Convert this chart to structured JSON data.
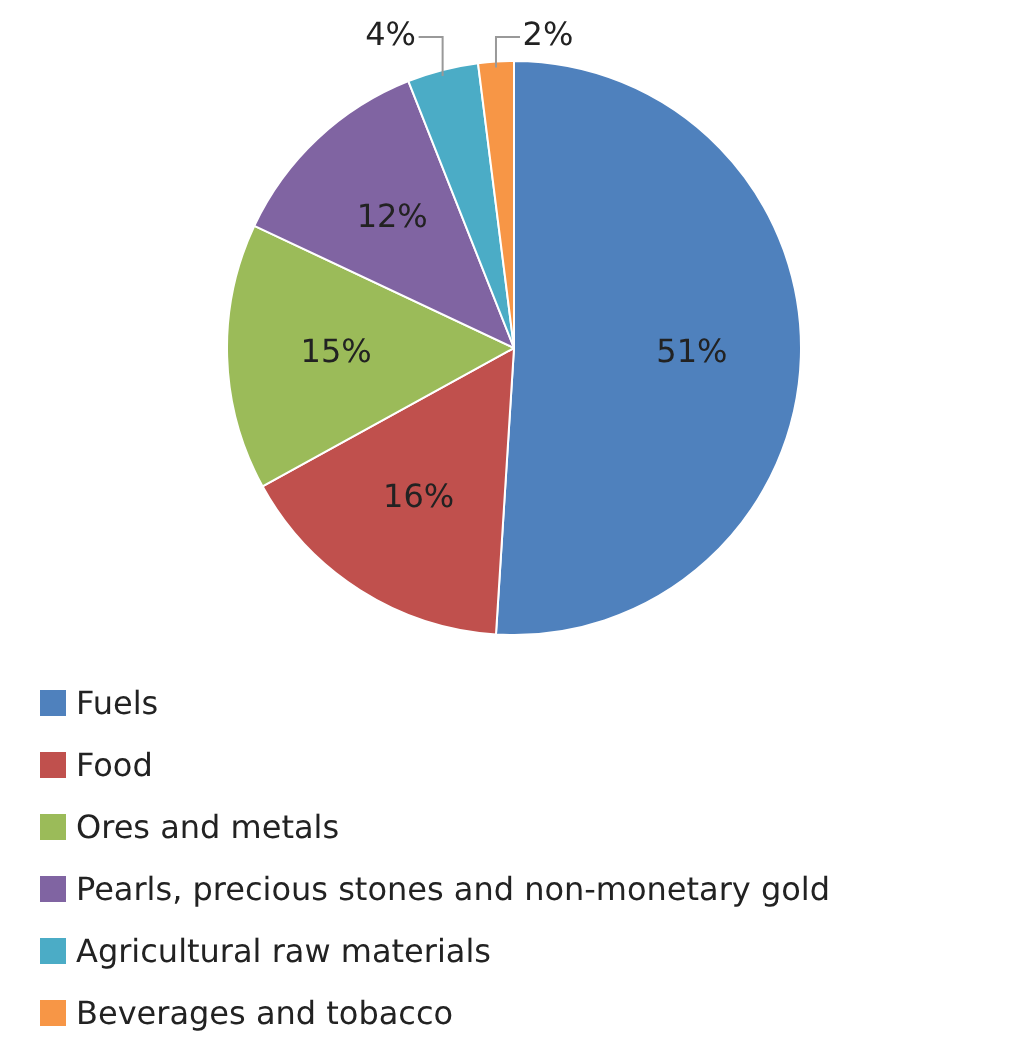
{
  "chart_data": {
    "type": "pie",
    "categories": [
      "Fuels",
      "Food",
      "Ores and metals",
      "Pearls, precious stones and non-monetary gold",
      "Agricultural raw materials",
      "Beverages and tobacco"
    ],
    "values": [
      51,
      16,
      15,
      12,
      4,
      2
    ],
    "colors": [
      "#4f81bd",
      "#c0504d",
      "#9bbb59",
      "#8064a2",
      "#4bacc6",
      "#f79646"
    ],
    "value_labels": [
      "51%",
      "16%",
      "15%",
      "12%",
      "4%",
      "2%"
    ],
    "legend": "bottom left"
  }
}
